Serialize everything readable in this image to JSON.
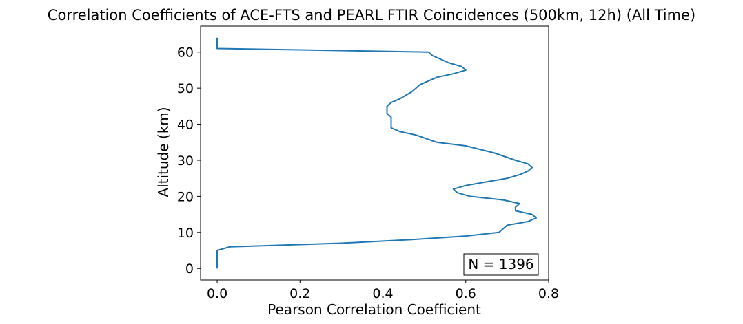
{
  "chart_data": {
    "type": "line",
    "title": "Correlation Coefficients of ACE-FTS and PEARL FTIR Coincidences (500km, 12h) (All Time)",
    "xlabel": "Pearson Correlation Coefficient",
    "ylabel": "Altitude (km)",
    "xlim": [
      -0.04,
      0.8
    ],
    "ylim": [
      -3.2,
      67.2
    ],
    "xticks": [
      "0.0",
      "0.2",
      "0.4",
      "0.6",
      "0.8"
    ],
    "yticks": [
      "0",
      "10",
      "20",
      "30",
      "40",
      "50",
      "60"
    ],
    "xtick_values": [
      0.0,
      0.2,
      0.4,
      0.6,
      0.8
    ],
    "ytick_values": [
      0,
      10,
      20,
      30,
      40,
      50,
      60
    ],
    "grid": false,
    "annotation": "N = 1396",
    "series": [
      {
        "color": "#1f77b4",
        "x": [
          0.0,
          0.0,
          0.0,
          0.0,
          0.0,
          0.0,
          0.03,
          0.3,
          0.47,
          0.6,
          0.68,
          0.69,
          0.7,
          0.75,
          0.77,
          0.76,
          0.72,
          0.72,
          0.73,
          0.69,
          0.61,
          0.58,
          0.57,
          0.6,
          0.65,
          0.7,
          0.73,
          0.75,
          0.76,
          0.75,
          0.72,
          0.67,
          0.6,
          0.53,
          0.48,
          0.44,
          0.42,
          0.42,
          0.42,
          0.42,
          0.41,
          0.41,
          0.41,
          0.42,
          0.44,
          0.47,
          0.49,
          0.53,
          0.57,
          0.6,
          0.59,
          0.56,
          0.52,
          0.51,
          0.0,
          0.0,
          0.0,
          0.0,
          0.0
        ],
        "y": [
          0,
          1,
          2,
          3,
          4,
          5,
          6,
          7,
          8,
          9,
          10,
          11,
          12,
          13,
          14,
          15,
          16,
          17,
          18,
          19,
          20,
          21,
          22,
          23,
          24,
          25,
          26,
          27,
          28,
          29,
          30,
          32,
          34,
          35,
          37,
          38,
          39,
          40,
          41,
          42,
          43,
          44,
          45,
          46,
          47,
          49,
          51,
          53,
          54,
          55,
          56,
          57,
          59,
          60,
          61,
          62,
          63,
          64,
          64
        ]
      }
    ]
  }
}
